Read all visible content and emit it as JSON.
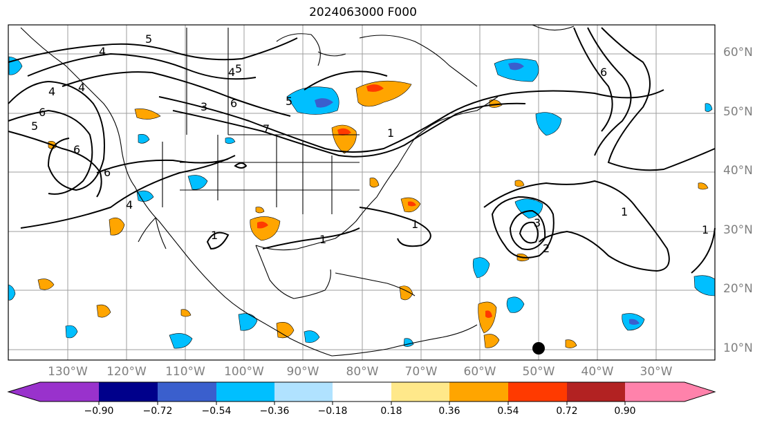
{
  "title": "2024063000 F000",
  "lat_labels": [
    "60°N",
    "50°N",
    "40°N",
    "30°N",
    "20°N",
    "10°N"
  ],
  "lon_labels": [
    "130°W",
    "120°W",
    "110°W",
    "100°W",
    "90°W",
    "80°W",
    "70°W",
    "60°W",
    "50°W",
    "40°W",
    "30°W"
  ],
  "contour_labels": [
    "5",
    "4",
    "4",
    "6",
    "5",
    "6",
    "3",
    "6",
    "5",
    "4",
    "5",
    "1",
    "4",
    "6",
    "6",
    "4",
    "3",
    "1",
    "1",
    "2",
    "1",
    "1",
    "1",
    "7"
  ],
  "colorbar": {
    "ticks": [
      "−0.90",
      "−0.72",
      "−0.54",
      "−0.36",
      "−0.18",
      "0.18",
      "0.36",
      "0.54",
      "0.72",
      "0.90"
    ],
    "colors": [
      "#9932cc",
      "#00008b",
      "#3a5fcd",
      "#00bfff",
      "#b0e2ff",
      "#ffffff",
      "#ffe88a",
      "#ffa500",
      "#ff3a00",
      "#b22222",
      "#ff82ab"
    ]
  },
  "fill_colors": {
    "light_blue": "#00bfff",
    "blue": "#3a5fcd",
    "orange": "#ffa500",
    "red": "#ff3a00",
    "yellow": "#ffe88a"
  },
  "marker": {
    "color": "#000000"
  }
}
